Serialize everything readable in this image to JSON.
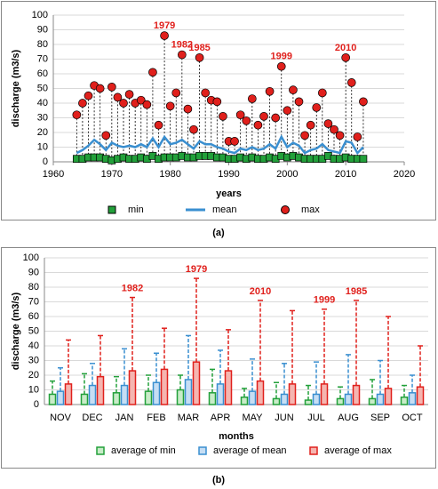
{
  "chart_data": [
    {
      "type": "scatter",
      "caption": "(a)",
      "xlabel": "years",
      "ylabel": "discharge (m3/s)",
      "xlim": [
        1960,
        2020
      ],
      "xticks": [
        1960,
        1970,
        1980,
        1990,
        2000,
        2010,
        2020
      ],
      "ylim": [
        0,
        100
      ],
      "yticks": [
        0,
        10,
        20,
        30,
        40,
        50,
        60,
        70,
        80,
        90,
        100
      ],
      "grid": true,
      "x": [
        1964,
        1965,
        1966,
        1967,
        1968,
        1969,
        1970,
        1971,
        1972,
        1973,
        1974,
        1975,
        1976,
        1977,
        1978,
        1979,
        1980,
        1981,
        1982,
        1983,
        1984,
        1985,
        1986,
        1987,
        1988,
        1989,
        1990,
        1991,
        1992,
        1993,
        1994,
        1995,
        1996,
        1997,
        1998,
        1999,
        2000,
        2001,
        2002,
        2003,
        2004,
        2005,
        2006,
        2007,
        2008,
        2009,
        2010,
        2011,
        2012,
        2013
      ],
      "series": [
        {
          "name": "min",
          "color": "#22a03a",
          "marker": "square",
          "values": [
            2,
            2,
            3,
            3,
            3,
            2,
            1,
            2,
            3,
            2,
            2,
            3,
            2,
            4,
            2,
            3,
            3,
            3,
            4,
            3,
            3,
            4,
            4,
            4,
            3,
            3,
            2,
            2,
            3,
            2,
            3,
            2,
            2,
            3,
            2,
            4,
            3,
            4,
            3,
            2,
            2,
            2,
            2,
            4,
            2,
            2,
            3,
            2,
            2,
            2
          ]
        },
        {
          "name": "mean",
          "color": "#3a8fd0",
          "marker": "line",
          "values": [
            6,
            8,
            11,
            15,
            12,
            8,
            13,
            11,
            10,
            11,
            10,
            12,
            10,
            16,
            10,
            17,
            12,
            13,
            15,
            12,
            9,
            14,
            12,
            12,
            10,
            9,
            7,
            6,
            9,
            8,
            10,
            8,
            9,
            12,
            9,
            17,
            10,
            13,
            11,
            6,
            8,
            9,
            12,
            8,
            7,
            6,
            14,
            13,
            6,
            10
          ]
        },
        {
          "name": "max",
          "color": "#e0201c",
          "marker": "circle",
          "values": [
            32,
            40,
            45,
            52,
            50,
            18,
            51,
            44,
            40,
            46,
            40,
            42,
            39,
            61,
            25,
            86,
            38,
            47,
            73,
            36,
            22,
            71,
            47,
            42,
            41,
            31,
            14,
            14,
            32,
            28,
            43,
            25,
            31,
            48,
            30,
            65,
            35,
            49,
            41,
            18,
            25,
            37,
            47,
            26,
            22,
            18,
            71,
            54,
            17,
            41
          ]
        }
      ],
      "annotations": [
        {
          "text": "1979",
          "x": 1979
        },
        {
          "text": "1982",
          "x": 1982
        },
        {
          "text": "1985",
          "x": 1985
        },
        {
          "text": "1999",
          "x": 1999
        },
        {
          "text": "2010",
          "x": 2010
        }
      ]
    },
    {
      "type": "bar",
      "caption": "(b)",
      "xlabel": "months",
      "ylabel": "discharge (m3/s)",
      "categories": [
        "NOV",
        "DEC",
        "JAN",
        "FEB",
        "MAR",
        "APR",
        "MAY",
        "JUN",
        "JUL",
        "AUG",
        "SEP",
        "OCT"
      ],
      "ylim": [
        0,
        100
      ],
      "yticks": [
        0,
        10,
        20,
        30,
        40,
        50,
        60,
        70,
        80,
        90,
        100
      ],
      "grid": true,
      "series": [
        {
          "name": "average of min",
          "color": "#22a03a",
          "fill": "#c8ecc8",
          "values": [
            7,
            7,
            8,
            9,
            10,
            8,
            5,
            4,
            3,
            4,
            4,
            5
          ],
          "errors": [
            9,
            14,
            11,
            11,
            10,
            16,
            6,
            11,
            10,
            8,
            13,
            8
          ]
        },
        {
          "name": "average of mean",
          "color": "#3a8fd0",
          "fill": "#c6def4",
          "values": [
            9,
            13,
            13,
            15,
            17,
            14,
            9,
            7,
            7,
            7,
            7,
            8
          ],
          "errors": [
            16,
            15,
            25,
            20,
            30,
            23,
            22,
            21,
            22,
            27,
            23,
            12
          ]
        },
        {
          "name": "average of max",
          "color": "#e0201c",
          "fill": "#f5b5b0",
          "values": [
            14,
            19,
            23,
            24,
            29,
            23,
            16,
            14,
            14,
            13,
            11,
            12
          ],
          "errors": [
            30,
            28,
            50,
            28,
            57,
            28,
            55,
            50,
            51,
            58,
            49,
            28
          ]
        }
      ],
      "annotations": [
        {
          "text": "1982",
          "category": "JAN"
        },
        {
          "text": "1979",
          "category": "MAR"
        },
        {
          "text": "2010",
          "category": "MAY"
        },
        {
          "text": "1999",
          "category": "JUL"
        },
        {
          "text": "1985",
          "category": "AUG"
        }
      ]
    }
  ]
}
